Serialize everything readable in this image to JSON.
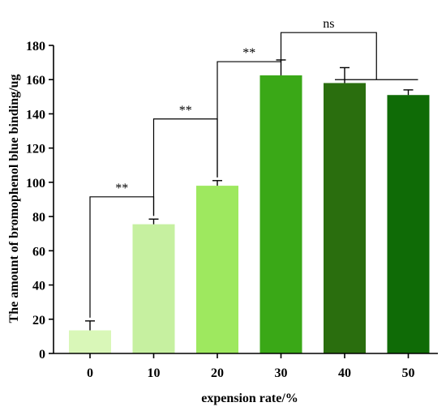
{
  "chart_data": {
    "type": "bar",
    "title": "",
    "xlabel": "expension rate/%",
    "ylabel": "The amount of bromophenol blue binding/ug",
    "ylim": [
      0,
      180
    ],
    "yticks": [
      0,
      20,
      40,
      60,
      80,
      100,
      120,
      140,
      160,
      180
    ],
    "categories": [
      "0",
      "10",
      "20",
      "30",
      "40",
      "50"
    ],
    "values": [
      13.5,
      75.5,
      98,
      162.5,
      158,
      151
    ],
    "errors": [
      5.5,
      3,
      3,
      9,
      9,
      3
    ],
    "colors": [
      "#d9f7b8",
      "#c6f0a0",
      "#9ee85f",
      "#3aa817",
      "#2a6e0e",
      "#0f6b06"
    ],
    "grid": false,
    "legend": "none",
    "significance": [
      {
        "from": 0,
        "to": 1,
        "label": "**"
      },
      {
        "from": 1,
        "to": 2,
        "label": "**"
      },
      {
        "from": 2,
        "to": 3,
        "label": "**"
      },
      {
        "from": 3,
        "to": 4.5,
        "label": "ns"
      }
    ]
  }
}
